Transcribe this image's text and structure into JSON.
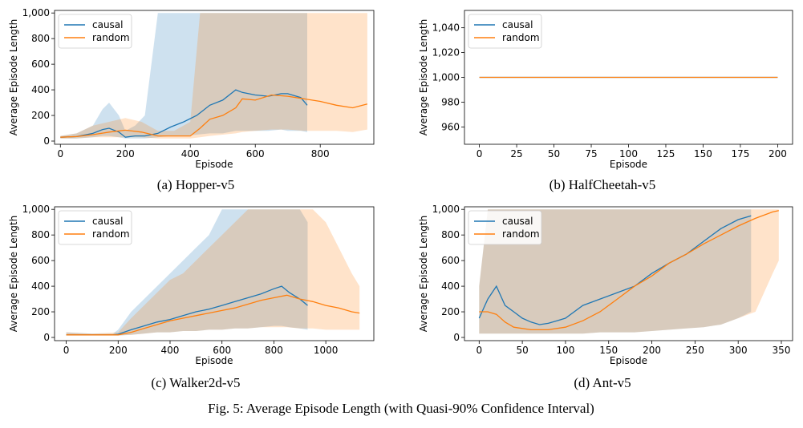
{
  "figure_caption": "Fig. 5: Average Episode Length (with Quasi-90% Confidence Interval)",
  "colors": {
    "causal": "#1f77b4",
    "random": "#ff7f0e"
  },
  "chart_data": [
    {
      "type": "line",
      "subcaption": "(a) Hopper-v5",
      "xlabel": "Episode",
      "ylabel": "Average Episode Length",
      "xlim": [
        -18,
        965
      ],
      "ylim": [
        -25,
        1020
      ],
      "xticks": [
        0,
        200,
        400,
        600,
        800
      ],
      "xtick_labels": [
        "0",
        "200",
        "400",
        "600",
        "800"
      ],
      "yticks": [
        0,
        200,
        400,
        600,
        800,
        1000
      ],
      "ytick_labels": [
        "0",
        "200",
        "400",
        "600",
        "800",
        "1,000"
      ],
      "legend": "upper-left",
      "series": [
        {
          "name": "causal",
          "x": [
            0,
            50,
            100,
            130,
            150,
            180,
            200,
            230,
            260,
            300,
            340,
            380,
            420,
            460,
            500,
            540,
            560,
            600,
            640,
            680,
            700,
            740,
            760
          ],
          "y": [
            30,
            35,
            60,
            90,
            100,
            70,
            30,
            40,
            40,
            60,
            110,
            150,
            200,
            280,
            320,
            400,
            380,
            360,
            350,
            370,
            370,
            340,
            280
          ],
          "lower": [
            20,
            20,
            30,
            40,
            40,
            30,
            20,
            20,
            20,
            30,
            40,
            40,
            50,
            60,
            60,
            80,
            80,
            80,
            80,
            90,
            80,
            80,
            70
          ],
          "upper": [
            40,
            60,
            120,
            250,
            300,
            200,
            80,
            120,
            200,
            1000,
            1000,
            1000,
            1000,
            1000,
            1000,
            1000,
            1000,
            1000,
            1000,
            1000,
            1000,
            1000,
            1000
          ]
        },
        {
          "name": "random",
          "x": [
            0,
            50,
            100,
            150,
            200,
            250,
            300,
            350,
            400,
            430,
            460,
            500,
            540,
            560,
            600,
            650,
            700,
            750,
            800,
            850,
            900,
            945
          ],
          "y": [
            30,
            35,
            50,
            70,
            85,
            70,
            40,
            40,
            40,
            100,
            170,
            200,
            260,
            330,
            320,
            360,
            350,
            330,
            310,
            280,
            260,
            290
          ],
          "lower": [
            20,
            20,
            30,
            30,
            30,
            30,
            20,
            20,
            20,
            30,
            40,
            50,
            60,
            70,
            80,
            90,
            90,
            80,
            80,
            80,
            70,
            90
          ],
          "upper": [
            40,
            60,
            120,
            150,
            180,
            150,
            80,
            80,
            150,
            1000,
            1000,
            1000,
            1000,
            1000,
            1000,
            1000,
            1000,
            1000,
            1000,
            1000,
            1000,
            1000
          ]
        }
      ]
    },
    {
      "type": "line",
      "subcaption": "(b) HalfCheetah-v5",
      "xlabel": "Episode",
      "ylabel": "Average Episode Length",
      "xlim": [
        -10,
        210
      ],
      "ylim": [
        946,
        1054
      ],
      "xticks": [
        0,
        25,
        50,
        75,
        100,
        125,
        150,
        175,
        200
      ],
      "xtick_labels": [
        "0",
        "25",
        "50",
        "75",
        "100",
        "125",
        "150",
        "175",
        "200"
      ],
      "yticks": [
        960,
        980,
        1000,
        1020,
        1040
      ],
      "ytick_labels": [
        "960",
        "980",
        "1,000",
        "1,020",
        "1,040"
      ],
      "legend": "upper-left",
      "series": [
        {
          "name": "causal",
          "x": [
            0,
            200
          ],
          "y": [
            1000,
            1000
          ]
        },
        {
          "name": "random",
          "x": [
            0,
            200
          ],
          "y": [
            1000,
            1000
          ]
        }
      ]
    },
    {
      "type": "line",
      "subcaption": "(c) Walker2d-v5",
      "xlabel": "Episode",
      "ylabel": "Average Episode Length",
      "xlim": [
        -45,
        1185
      ],
      "ylim": [
        -25,
        1020
      ],
      "xticks": [
        0,
        200,
        400,
        600,
        800,
        1000
      ],
      "xtick_labels": [
        "0",
        "200",
        "400",
        "600",
        "800",
        "1000"
      ],
      "yticks": [
        0,
        200,
        400,
        600,
        800,
        1000
      ],
      "ytick_labels": [
        "0",
        "200",
        "400",
        "600",
        "800",
        "1,000"
      ],
      "legend": "upper-left",
      "series": [
        {
          "name": "causal",
          "x": [
            0,
            100,
            180,
            200,
            250,
            300,
            350,
            400,
            450,
            500,
            550,
            600,
            650,
            700,
            750,
            800,
            830,
            860,
            900,
            930
          ],
          "y": [
            20,
            20,
            20,
            25,
            60,
            90,
            120,
            140,
            170,
            200,
            220,
            250,
            280,
            310,
            340,
            380,
            400,
            350,
            300,
            250
          ],
          "lower": [
            15,
            15,
            15,
            15,
            20,
            30,
            40,
            40,
            50,
            50,
            60,
            60,
            70,
            70,
            80,
            90,
            90,
            80,
            70,
            60
          ],
          "upper": [
            40,
            30,
            30,
            60,
            200,
            300,
            400,
            500,
            600,
            700,
            800,
            1000,
            1000,
            1000,
            1000,
            1000,
            1000,
            1000,
            1000,
            900
          ]
        },
        {
          "name": "random",
          "x": [
            0,
            100,
            200,
            250,
            300,
            350,
            400,
            450,
            500,
            550,
            600,
            650,
            700,
            750,
            800,
            850,
            900,
            950,
            1000,
            1050,
            1100,
            1130
          ],
          "y": [
            20,
            20,
            20,
            40,
            70,
            100,
            130,
            150,
            170,
            190,
            210,
            230,
            260,
            290,
            310,
            330,
            300,
            280,
            250,
            230,
            200,
            190
          ],
          "lower": [
            15,
            15,
            15,
            20,
            30,
            40,
            40,
            50,
            50,
            60,
            60,
            70,
            70,
            80,
            80,
            80,
            70,
            70,
            60,
            60,
            60,
            60
          ],
          "upper": [
            40,
            30,
            40,
            150,
            250,
            350,
            450,
            500,
            600,
            700,
            800,
            900,
            1000,
            1000,
            1000,
            1000,
            1000,
            1000,
            900,
            700,
            500,
            400
          ]
        }
      ]
    },
    {
      "type": "line",
      "subcaption": "(d) Ant-v5",
      "xlabel": "Episode",
      "ylabel": "Average Episode Length",
      "xlim": [
        -17,
        363
      ],
      "ylim": [
        -25,
        1020
      ],
      "xticks": [
        0,
        50,
        100,
        150,
        200,
        250,
        300,
        350
      ],
      "xtick_labels": [
        "0",
        "50",
        "100",
        "150",
        "200",
        "250",
        "300",
        "350"
      ],
      "yticks": [
        0,
        200,
        400,
        600,
        800,
        1000
      ],
      "ytick_labels": [
        "0",
        "200",
        "400",
        "600",
        "800",
        "1,000"
      ],
      "legend": "upper-left",
      "series": [
        {
          "name": "causal",
          "x": [
            0,
            10,
            20,
            30,
            40,
            50,
            60,
            70,
            80,
            90,
            100,
            120,
            140,
            160,
            180,
            200,
            220,
            240,
            260,
            280,
            300,
            315
          ],
          "y": [
            150,
            300,
            400,
            250,
            200,
            150,
            120,
            100,
            110,
            130,
            150,
            250,
            300,
            350,
            400,
            500,
            580,
            650,
            750,
            850,
            920,
            950
          ],
          "lower": [
            30,
            30,
            30,
            30,
            30,
            30,
            30,
            30,
            30,
            30,
            30,
            30,
            40,
            40,
            40,
            50,
            60,
            70,
            80,
            100,
            150,
            200
          ],
          "upper": [
            400,
            1000,
            1000,
            1000,
            1000,
            1000,
            1000,
            1000,
            1000,
            1000,
            1000,
            1000,
            1000,
            1000,
            1000,
            1000,
            1000,
            1000,
            1000,
            1000,
            1000,
            1000
          ]
        },
        {
          "name": "random",
          "x": [
            0,
            10,
            20,
            30,
            40,
            50,
            60,
            80,
            100,
            120,
            140,
            160,
            180,
            200,
            220,
            240,
            260,
            280,
            300,
            320,
            340,
            347
          ],
          "y": [
            200,
            200,
            180,
            120,
            80,
            70,
            60,
            60,
            80,
            130,
            200,
            300,
            400,
            480,
            580,
            650,
            730,
            800,
            870,
            930,
            980,
            990
          ],
          "lower": [
            30,
            30,
            30,
            30,
            30,
            30,
            30,
            30,
            30,
            30,
            40,
            40,
            40,
            50,
            60,
            70,
            80,
            100,
            150,
            200,
            500,
            600
          ],
          "upper": [
            400,
            1000,
            1000,
            1000,
            1000,
            1000,
            1000,
            1000,
            1000,
            1000,
            1000,
            1000,
            1000,
            1000,
            1000,
            1000,
            1000,
            1000,
            1000,
            1000,
            1000,
            1000
          ]
        }
      ]
    }
  ]
}
